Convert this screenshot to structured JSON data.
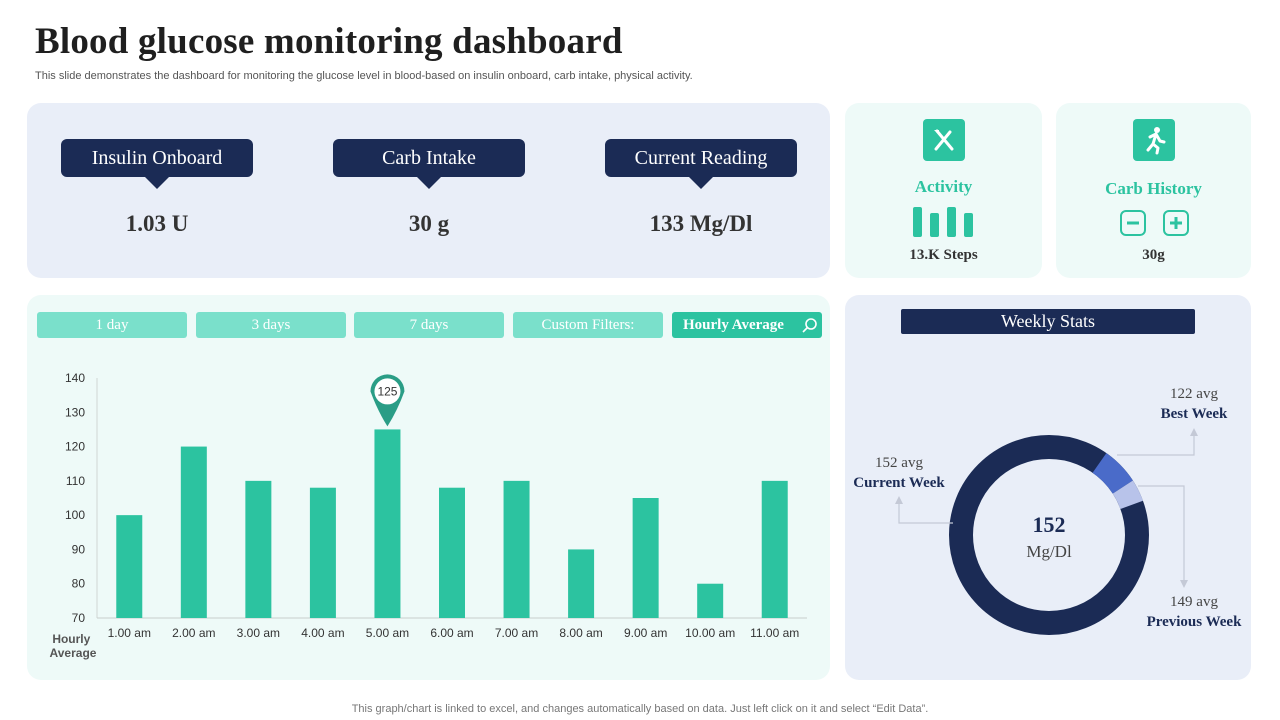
{
  "page": {
    "title": "Blood glucose monitoring dashboard",
    "subtitle": "This slide demonstrates the dashboard for monitoring the glucose level in blood-based on insulin onboard, carb intake, physical activity.",
    "footnote": "This graph/chart is linked to excel,  and changes automatically based on data. Just left click on it and select “Edit Data”."
  },
  "metrics": [
    {
      "label": "Insulin Onboard",
      "value": "1.03 U"
    },
    {
      "label": "Carb Intake",
      "value": "30 g"
    },
    {
      "label": "Current Reading",
      "value": "133 Mg/Dl"
    }
  ],
  "activity": {
    "title": "Activity",
    "value": "13.K Steps",
    "icon": "fork-knife-icon"
  },
  "carb_history": {
    "title": "Carb History",
    "value": "30g",
    "icon": "running-person-icon"
  },
  "filters": [
    "1 day",
    "3 days",
    "7 days",
    "Custom Filters:",
    "Hourly Average"
  ],
  "colors": {
    "navy": "#1b2b55",
    "teal": "#2cc3a0",
    "teal_light": "#7ae0cb",
    "blue": "#4a6bc9",
    "blue_light": "#b8c3ea"
  },
  "chart_data": {
    "type": "bar",
    "categories": [
      "1.00 am",
      "2.00 am",
      "3.00 am",
      "4.00 am",
      "5.00 am",
      "6.00 am",
      "7.00 am",
      "8.00 am",
      "9.00 am",
      "10.00 am",
      "11.00 am"
    ],
    "values": [
      100,
      120,
      110,
      108,
      125,
      108,
      110,
      90,
      105,
      80,
      110
    ],
    "xlabel": "Hourly Average",
    "ylabel": "",
    "ylim": [
      70,
      140
    ],
    "yticks": [
      70,
      80,
      90,
      100,
      110,
      120,
      130,
      140
    ],
    "highlight": {
      "category": "5.00 am",
      "label": "125"
    },
    "color": "#2cc3a0"
  },
  "weekly": {
    "title": "Weekly Stats",
    "center_value": "152",
    "center_unit": "Mg/Dl",
    "segments": [
      {
        "name": "Current Week",
        "avg_text": "152 avg",
        "value": 152,
        "color": "#1b2b55"
      },
      {
        "name": "Best Week",
        "avg_text": "122 avg",
        "value": 122,
        "color": "#4a6bc9"
      },
      {
        "name": "Previous Week",
        "avg_text": "149 avg",
        "value": 149,
        "color": "#b8c3ea"
      }
    ]
  }
}
